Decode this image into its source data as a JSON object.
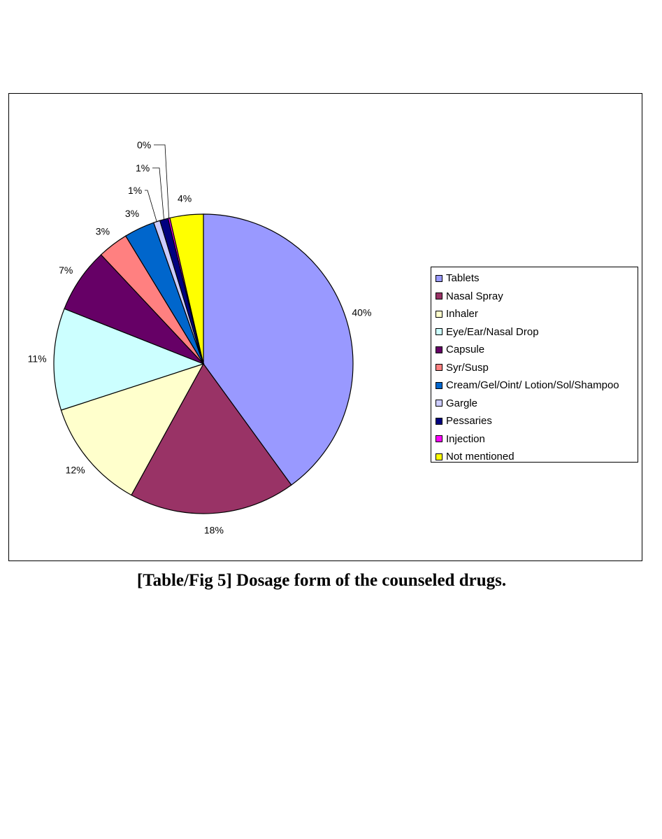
{
  "caption": "[Table/Fig 5] Dosage form of the counseled drugs.",
  "chart_data": {
    "type": "pie",
    "title": "",
    "slices": [
      {
        "label": "Tablets",
        "value": 40,
        "display": "40%",
        "color": "#9999ff"
      },
      {
        "label": "Nasal Spray",
        "value": 18,
        "display": "18%",
        "color": "#993366"
      },
      {
        "label": "Inhaler",
        "value": 12,
        "display": "12%",
        "color": "#ffffcc"
      },
      {
        "label": "Eye/Ear/Nasal Drop",
        "value": 11,
        "display": "11%",
        "color": "#ccffff"
      },
      {
        "label": "Capsule",
        "value": 7,
        "display": "7%",
        "color": "#660066"
      },
      {
        "label": "Syr/Susp",
        "value": 3.3,
        "display": "3%",
        "color": "#ff8080"
      },
      {
        "label": "Cream/Gel/Oint/ Lotion/Sol/Shampoo",
        "value": 3.3,
        "display": "3%",
        "color": "#0066cc"
      },
      {
        "label": "Gargle",
        "value": 0.7,
        "display": "1%",
        "color": "#ccccff"
      },
      {
        "label": "Pessaries",
        "value": 0.9,
        "display": "1%",
        "color": "#000080"
      },
      {
        "label": "Injection",
        "value": 0.2,
        "display": "0%",
        "color": "#ff00ff"
      },
      {
        "label": "Not mentioned",
        "value": 3.6,
        "display": "4%",
        "color": "#ffff00"
      }
    ],
    "start": "12 o'clock",
    "direction": "clockwise",
    "legend": "right"
  }
}
